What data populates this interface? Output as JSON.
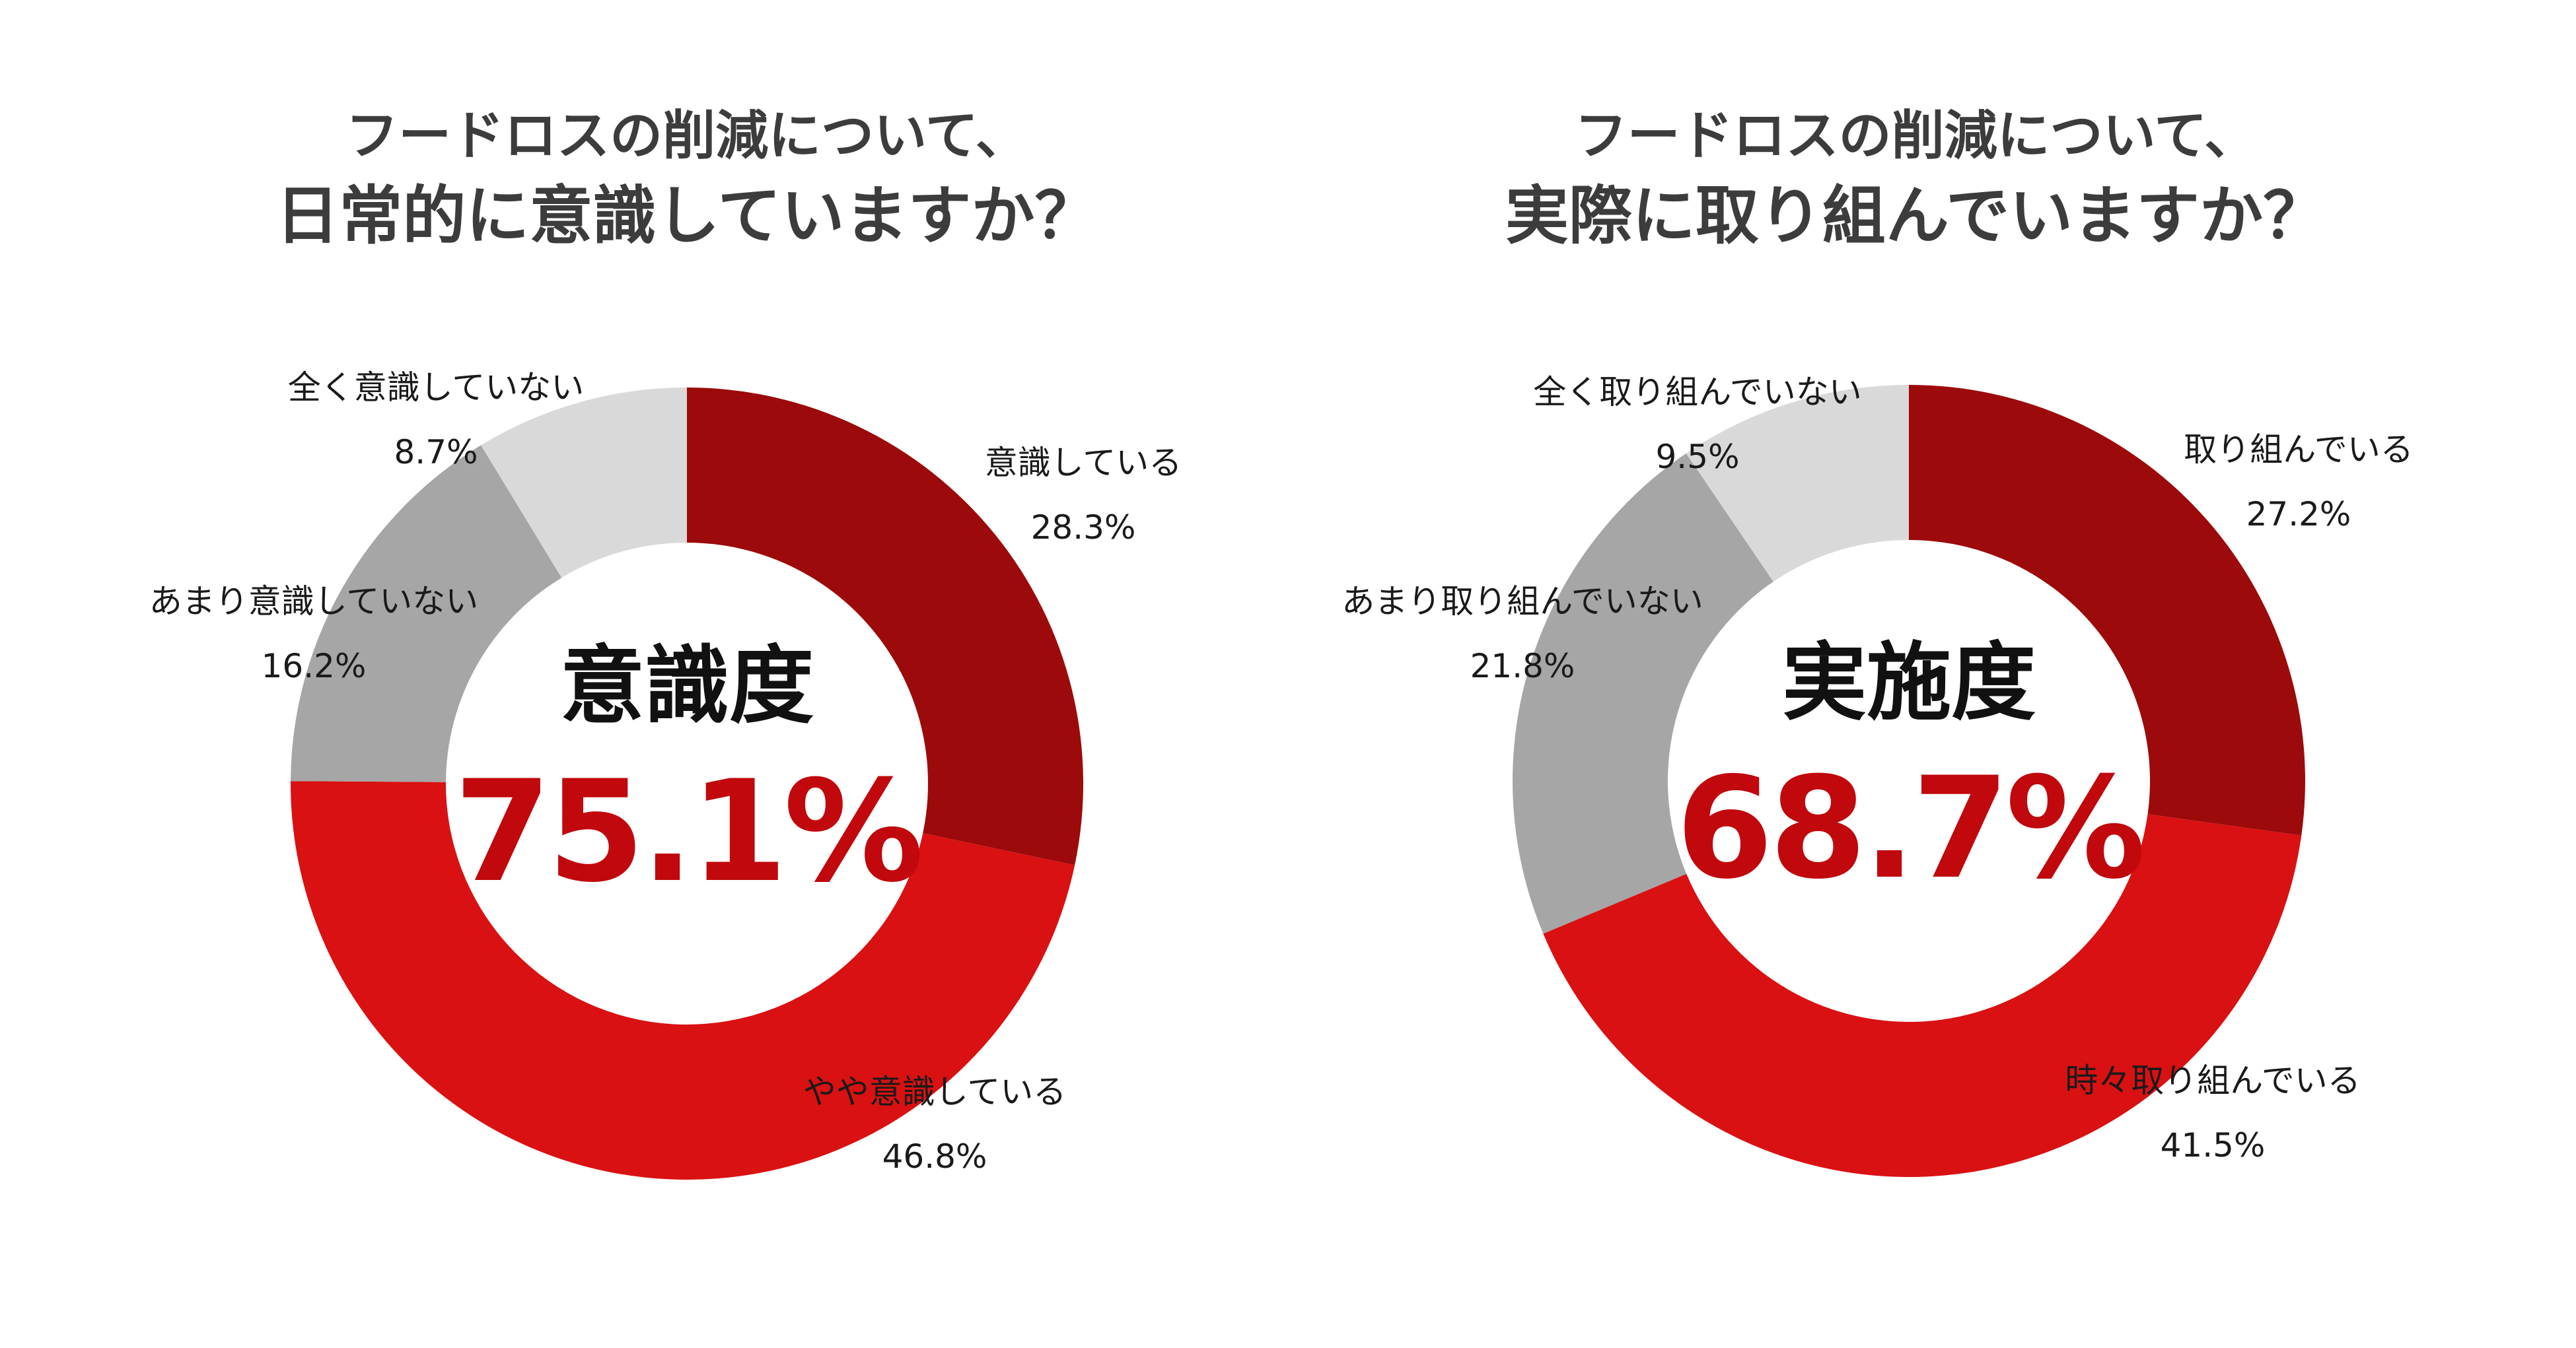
{
  "chart_data": [
    {
      "type": "pie",
      "title_line1": "フードロスの削減について、",
      "title_line2": "日常的に意識していますか？",
      "center_label": "意識度",
      "center_value": "75.1%",
      "slices": [
        {
          "name": "意識している",
          "value": 28.3,
          "value_label": "28.3%",
          "color": "#9c0a0b"
        },
        {
          "name": "やや意識している",
          "value": 46.8,
          "value_label": "46.8%",
          "color": "#d91112"
        },
        {
          "name": "あまり意識していない",
          "value": 16.2,
          "value_label": "16.2%",
          "color": "#a6a6a6"
        },
        {
          "name": "全く意識していない",
          "value": 8.7,
          "value_label": "8.7%",
          "color": "#d9d9d9"
        }
      ]
    },
    {
      "type": "pie",
      "title_line1": "フードロスの削減について、",
      "title_line2": "実際に取り組んでいますか？",
      "center_label": "実施度",
      "center_value": "68.7%",
      "slices": [
        {
          "name": "取り組んでいる",
          "value": 27.2,
          "value_label": "27.2%",
          "color": "#9c0a0b"
        },
        {
          "name": "時々取り組んでいる",
          "value": 41.5,
          "value_label": "41.5%",
          "color": "#d91112"
        },
        {
          "name": "あまり取り組んでいない",
          "value": 21.8,
          "value_label": "21.8%",
          "color": "#a6a6a6"
        },
        {
          "name": "全く取り組んでいない",
          "value": 9.5,
          "value_label": "9.5%",
          "color": "#d9d9d9"
        }
      ]
    }
  ]
}
